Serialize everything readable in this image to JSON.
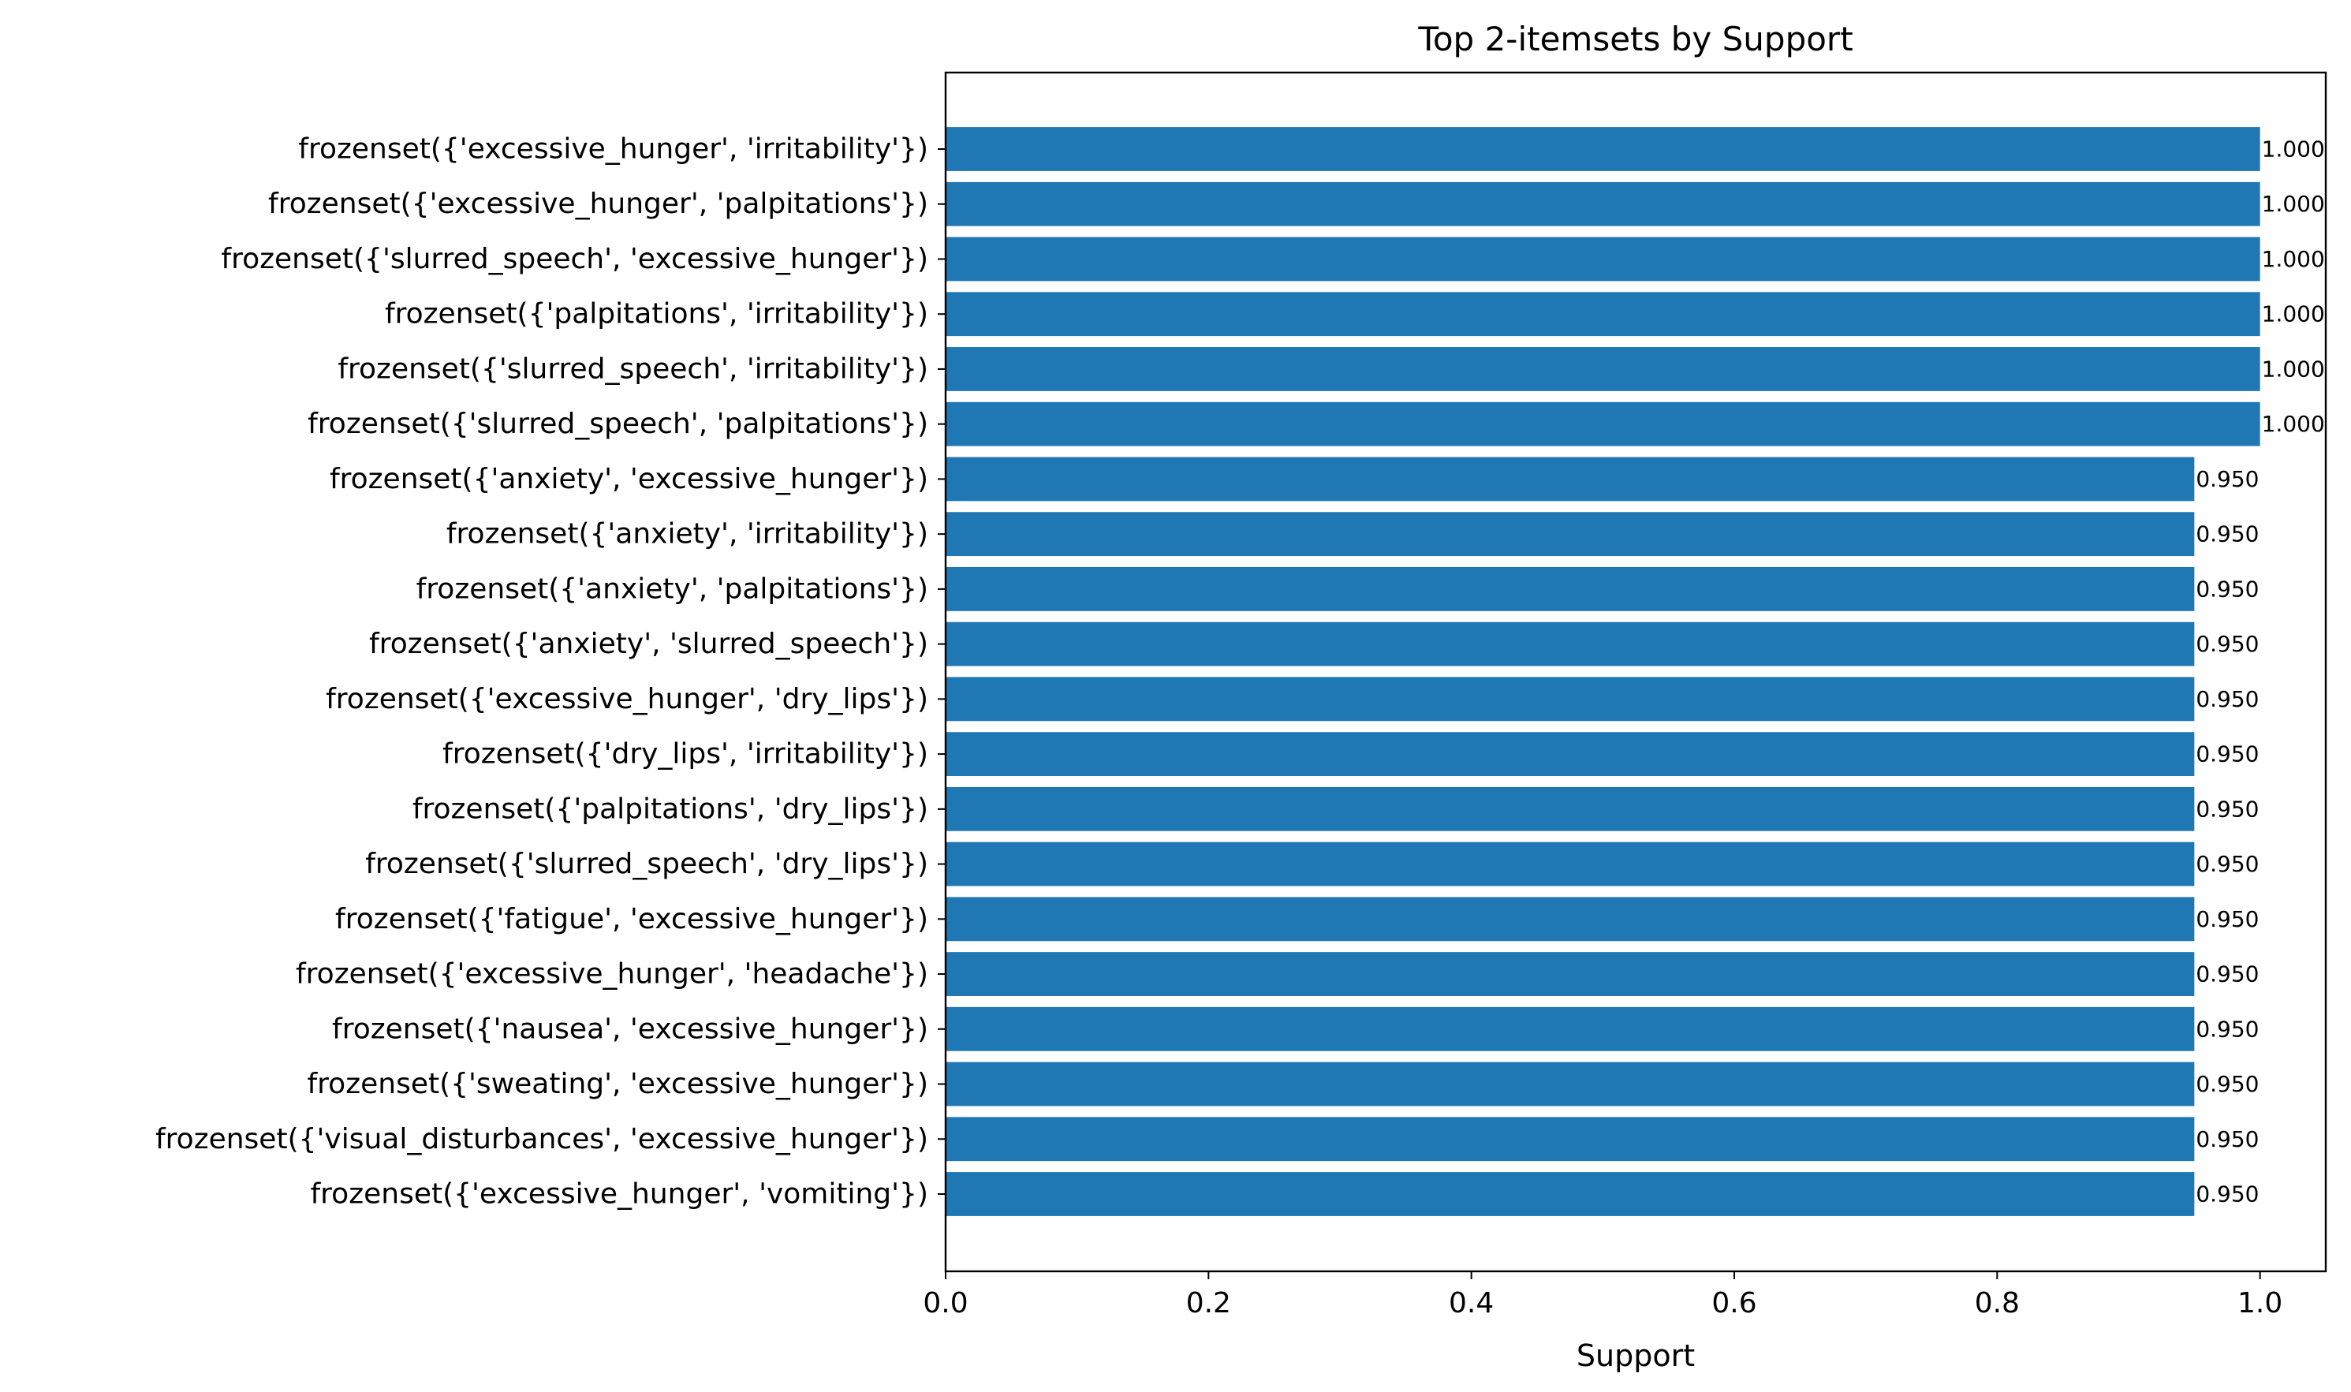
{
  "chart_data": {
    "type": "bar",
    "orientation": "horizontal",
    "title": "Top 2-itemsets by Support",
    "xlabel": "Support",
    "ylabel": "",
    "xlim": [
      0,
      1.05
    ],
    "xticks": [
      0.0,
      0.2,
      0.4,
      0.6,
      0.8,
      1.0
    ],
    "xtick_labels": [
      "0.0",
      "0.2",
      "0.4",
      "0.6",
      "0.8",
      "1.0"
    ],
    "grid": false,
    "bar_color": "#1f77b4",
    "categories": [
      "frozenset({'excessive_hunger', 'irritability'})",
      "frozenset({'excessive_hunger', 'palpitations'})",
      "frozenset({'slurred_speech', 'excessive_hunger'})",
      "frozenset({'palpitations', 'irritability'})",
      "frozenset({'slurred_speech', 'irritability'})",
      "frozenset({'slurred_speech', 'palpitations'})",
      "frozenset({'anxiety', 'excessive_hunger'})",
      "frozenset({'anxiety', 'irritability'})",
      "frozenset({'anxiety', 'palpitations'})",
      "frozenset({'anxiety', 'slurred_speech'})",
      "frozenset({'excessive_hunger', 'dry_lips'})",
      "frozenset({'dry_lips', 'irritability'})",
      "frozenset({'palpitations', 'dry_lips'})",
      "frozenset({'slurred_speech', 'dry_lips'})",
      "frozenset({'fatigue', 'excessive_hunger'})",
      "frozenset({'excessive_hunger', 'headache'})",
      "frozenset({'nausea', 'excessive_hunger'})",
      "frozenset({'sweating', 'excessive_hunger'})",
      "frozenset({'visual_disturbances', 'excessive_hunger'})",
      "frozenset({'excessive_hunger', 'vomiting'})"
    ],
    "values": [
      1.0,
      1.0,
      1.0,
      1.0,
      1.0,
      1.0,
      0.95,
      0.95,
      0.95,
      0.95,
      0.95,
      0.95,
      0.95,
      0.95,
      0.95,
      0.95,
      0.95,
      0.95,
      0.95,
      0.95
    ],
    "value_labels": [
      "1.000",
      "1.000",
      "1.000",
      "1.000",
      "1.000",
      "1.000",
      "0.950",
      "0.950",
      "0.950",
      "0.950",
      "0.950",
      "0.950",
      "0.950",
      "0.950",
      "0.950",
      "0.950",
      "0.950",
      "0.950",
      "0.950",
      "0.950"
    ]
  }
}
